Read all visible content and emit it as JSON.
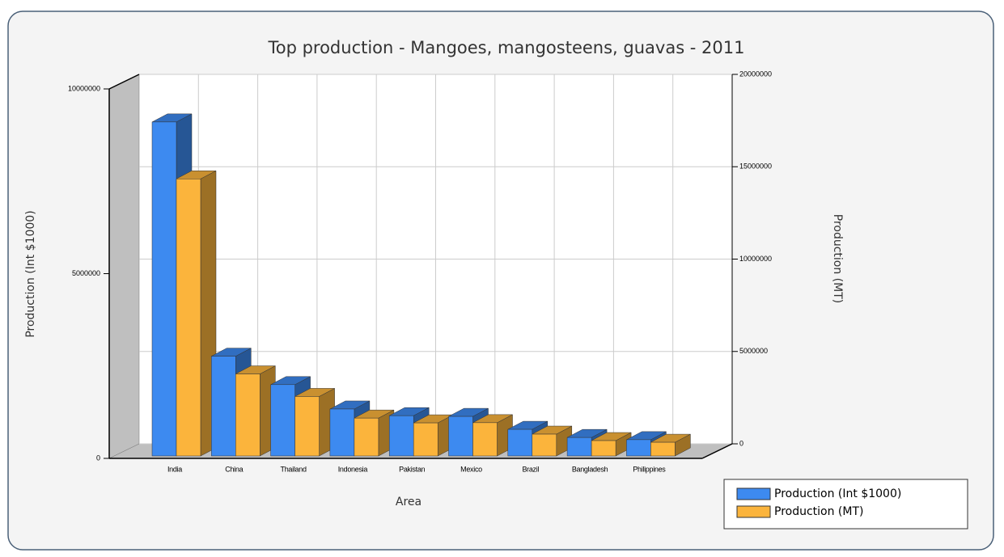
{
  "chart_data": {
    "type": "bar3d",
    "title": "Top production - Mangoes, mangosteens, guavas - 2011",
    "x_label": "Area",
    "y_label": "Production (Int $1000)",
    "y2_label": "Production (MT)",
    "categories": [
      "India",
      "China",
      "Thailand",
      "Indonesia",
      "Pakistan",
      "Mexico",
      "Brazil",
      "Bangladesh",
      "Philippines"
    ],
    "series": [
      {
        "name": "Production (Int $1000)",
        "color": "#3d8af0",
        "values": [
          9040000,
          2700000,
          1930000,
          1270000,
          1090000,
          1070000,
          720000,
          500000,
          440000
        ]
      },
      {
        "name": "Production (MT)",
        "color": "#fbb43c",
        "axis": "y2",
        "values": [
          15000000,
          4440000,
          3220000,
          2050000,
          1790000,
          1800000,
          1180000,
          830000,
          740000
        ]
      }
    ],
    "ylim": [
      0,
      10000000
    ],
    "yticks": [
      0,
      5000000,
      10000000
    ],
    "y2lim": [
      0,
      20000000
    ],
    "y2ticks": [
      0,
      5000000,
      10000000,
      15000000,
      20000000
    ],
    "grid": true,
    "legend": "bottom-right"
  }
}
